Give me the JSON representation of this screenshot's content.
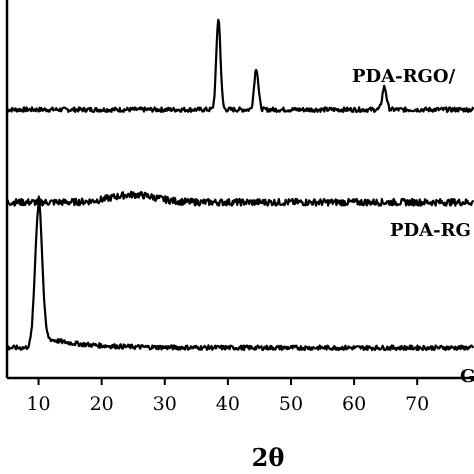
{
  "chart_data": {
    "type": "line",
    "xlabel": "2θ",
    "ylabel": "",
    "xlim": [
      5,
      79
    ],
    "ylim": [
      0,
      1
    ],
    "x_ticks": [
      10,
      20,
      30,
      40,
      50,
      60,
      70
    ],
    "y_ticks_shown": false,
    "grid": false,
    "legend": "none",
    "series": [
      {
        "name": "PDA-RGO/...",
        "label_visible": "PDA-RGO/",
        "baseline": 0.71,
        "peaks": [
          {
            "x": 38.5,
            "height": 0.24
          },
          {
            "x": 44.5,
            "height": 0.11
          },
          {
            "x": 64.8,
            "height": 0.06
          }
        ]
      },
      {
        "name": "PDA-RG...",
        "label_visible": "PDA-RG",
        "baseline": 0.465,
        "peaks": [
          {
            "x": 25,
            "height": 0.02
          }
        ]
      },
      {
        "name": "G...",
        "label_visible": "G",
        "baseline": 0.08,
        "peaks": [
          {
            "x": 10,
            "height": 0.37
          }
        ]
      }
    ]
  }
}
